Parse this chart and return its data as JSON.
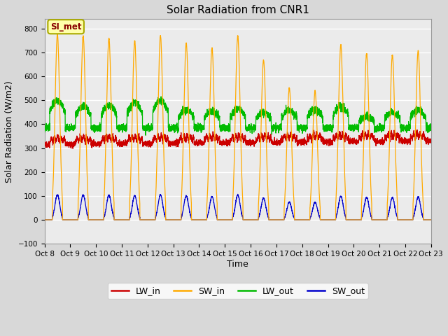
{
  "title": "Solar Radiation from CNR1",
  "xlabel": "Time",
  "ylabel": "Solar Radiation (W/m2)",
  "ylim": [
    -100,
    840
  ],
  "yticks": [
    -100,
    0,
    100,
    200,
    300,
    400,
    500,
    600,
    700,
    800
  ],
  "annotation": "SI_met",
  "fig_facecolor": "#d8d8d8",
  "ax_facecolor": "#ebebeb",
  "series_colors": {
    "LW_in": "#cc0000",
    "SW_in": "#ffaa00",
    "LW_out": "#00bb00",
    "SW_out": "#0000cc"
  },
  "n_days": 15,
  "samples_per_day": 288,
  "start_day": 8,
  "xtick_labels": [
    "Oct 8",
    "Oct 9",
    "Oct 10",
    "Oct 11",
    "Oct 12",
    "Oct 13",
    "Oct 14",
    "Oct 15",
    "Oct 16",
    "Oct 17",
    "Oct 18",
    "Oct 19",
    "Oct 20",
    "Oct 21",
    "Oct 22",
    "Oct 23"
  ]
}
